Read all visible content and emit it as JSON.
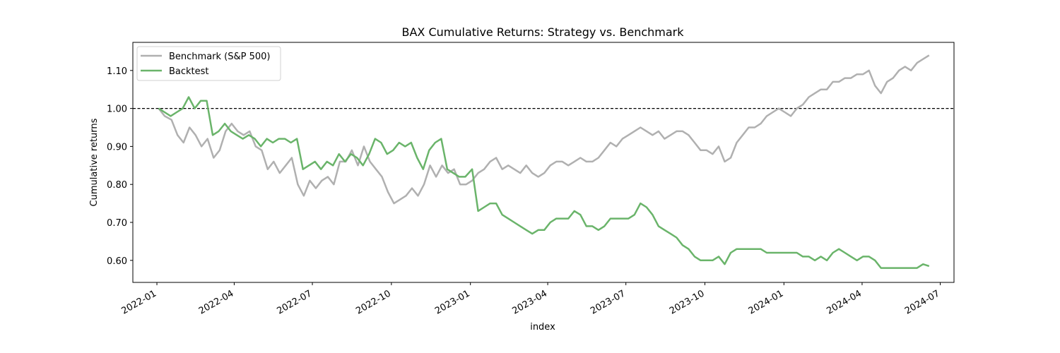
{
  "chart_data": {
    "type": "line",
    "title": "BAX Cumulative Returns: Strategy vs. Benchmark",
    "xlabel": "index",
    "ylabel": "Cumulative returns",
    "xlim": [
      "2021-12-04",
      "2024-07-17"
    ],
    "ylim": [
      0.542,
      1.174
    ],
    "x_ticks": [
      "2022-01",
      "2022-04",
      "2022-07",
      "2022-10",
      "2023-01",
      "2023-04",
      "2023-07",
      "2023-10",
      "2024-01",
      "2024-04",
      "2024-07"
    ],
    "y_ticks": [
      0.6,
      0.7,
      0.8,
      0.9,
      1.0,
      1.1
    ],
    "y_tick_labels": [
      "0.60",
      "0.70",
      "0.80",
      "0.90",
      "1.00",
      "1.10"
    ],
    "reference_line": {
      "y": 1.0,
      "style": "dashed",
      "color": "#000000"
    },
    "grid": false,
    "legend": {
      "placement": "top-left"
    },
    "series": [
      {
        "name": "Benchmark (S&P 500)",
        "color": "#b0b0b0",
        "points": [
          [
            "2022-01-03",
            1.0
          ],
          [
            "2022-01-10",
            0.98
          ],
          [
            "2022-01-18",
            0.97
          ],
          [
            "2022-01-25",
            0.93
          ],
          [
            "2022-02-01",
            0.91
          ],
          [
            "2022-02-08",
            0.95
          ],
          [
            "2022-02-15",
            0.93
          ],
          [
            "2022-02-22",
            0.9
          ],
          [
            "2022-03-01",
            0.92
          ],
          [
            "2022-03-08",
            0.87
          ],
          [
            "2022-03-15",
            0.89
          ],
          [
            "2022-03-22",
            0.94
          ],
          [
            "2022-03-29",
            0.96
          ],
          [
            "2022-04-05",
            0.94
          ],
          [
            "2022-04-12",
            0.93
          ],
          [
            "2022-04-19",
            0.94
          ],
          [
            "2022-04-26",
            0.9
          ],
          [
            "2022-05-03",
            0.89
          ],
          [
            "2022-05-10",
            0.84
          ],
          [
            "2022-05-17",
            0.86
          ],
          [
            "2022-05-24",
            0.83
          ],
          [
            "2022-05-31",
            0.85
          ],
          [
            "2022-06-07",
            0.87
          ],
          [
            "2022-06-14",
            0.8
          ],
          [
            "2022-06-21",
            0.77
          ],
          [
            "2022-06-28",
            0.81
          ],
          [
            "2022-07-05",
            0.79
          ],
          [
            "2022-07-12",
            0.81
          ],
          [
            "2022-07-19",
            0.82
          ],
          [
            "2022-07-26",
            0.8
          ],
          [
            "2022-08-02",
            0.86
          ],
          [
            "2022-08-09",
            0.86
          ],
          [
            "2022-08-16",
            0.89
          ],
          [
            "2022-08-23",
            0.85
          ],
          [
            "2022-08-30",
            0.9
          ],
          [
            "2022-09-06",
            0.86
          ],
          [
            "2022-09-13",
            0.84
          ],
          [
            "2022-09-20",
            0.82
          ],
          [
            "2022-09-27",
            0.78
          ],
          [
            "2022-10-04",
            0.75
          ],
          [
            "2022-10-11",
            0.76
          ],
          [
            "2022-10-18",
            0.77
          ],
          [
            "2022-10-25",
            0.79
          ],
          [
            "2022-11-01",
            0.77
          ],
          [
            "2022-11-08",
            0.8
          ],
          [
            "2022-11-15",
            0.85
          ],
          [
            "2022-11-22",
            0.82
          ],
          [
            "2022-11-29",
            0.85
          ],
          [
            "2022-12-06",
            0.83
          ],
          [
            "2022-12-13",
            0.84
          ],
          [
            "2022-12-20",
            0.8
          ],
          [
            "2022-12-27",
            0.8
          ],
          [
            "2023-01-03",
            0.81
          ],
          [
            "2023-01-10",
            0.83
          ],
          [
            "2023-01-17",
            0.84
          ],
          [
            "2023-01-24",
            0.86
          ],
          [
            "2023-01-31",
            0.87
          ],
          [
            "2023-02-07",
            0.84
          ],
          [
            "2023-02-14",
            0.85
          ],
          [
            "2023-02-21",
            0.84
          ],
          [
            "2023-02-28",
            0.83
          ],
          [
            "2023-03-07",
            0.85
          ],
          [
            "2023-03-14",
            0.83
          ],
          [
            "2023-03-21",
            0.82
          ],
          [
            "2023-03-28",
            0.83
          ],
          [
            "2023-04-04",
            0.85
          ],
          [
            "2023-04-11",
            0.86
          ],
          [
            "2023-04-18",
            0.86
          ],
          [
            "2023-04-25",
            0.85
          ],
          [
            "2023-05-02",
            0.86
          ],
          [
            "2023-05-09",
            0.87
          ],
          [
            "2023-05-16",
            0.86
          ],
          [
            "2023-05-23",
            0.86
          ],
          [
            "2023-05-30",
            0.87
          ],
          [
            "2023-06-06",
            0.89
          ],
          [
            "2023-06-13",
            0.91
          ],
          [
            "2023-06-20",
            0.9
          ],
          [
            "2023-06-27",
            0.92
          ],
          [
            "2023-07-04",
            0.93
          ],
          [
            "2023-07-11",
            0.94
          ],
          [
            "2023-07-18",
            0.95
          ],
          [
            "2023-07-25",
            0.94
          ],
          [
            "2023-08-01",
            0.93
          ],
          [
            "2023-08-08",
            0.94
          ],
          [
            "2023-08-15",
            0.92
          ],
          [
            "2023-08-22",
            0.93
          ],
          [
            "2023-08-29",
            0.94
          ],
          [
            "2023-09-05",
            0.94
          ],
          [
            "2023-09-12",
            0.93
          ],
          [
            "2023-09-19",
            0.91
          ],
          [
            "2023-09-26",
            0.89
          ],
          [
            "2023-10-03",
            0.89
          ],
          [
            "2023-10-10",
            0.88
          ],
          [
            "2023-10-17",
            0.9
          ],
          [
            "2023-10-24",
            0.86
          ],
          [
            "2023-10-31",
            0.87
          ],
          [
            "2023-11-07",
            0.91
          ],
          [
            "2023-11-14",
            0.93
          ],
          [
            "2023-11-21",
            0.95
          ],
          [
            "2023-11-28",
            0.95
          ],
          [
            "2023-12-05",
            0.96
          ],
          [
            "2023-12-12",
            0.98
          ],
          [
            "2023-12-19",
            0.99
          ],
          [
            "2023-12-26",
            1.0
          ],
          [
            "2024-01-02",
            0.99
          ],
          [
            "2024-01-09",
            0.98
          ],
          [
            "2024-01-16",
            1.0
          ],
          [
            "2024-01-23",
            1.01
          ],
          [
            "2024-01-30",
            1.03
          ],
          [
            "2024-02-06",
            1.04
          ],
          [
            "2024-02-13",
            1.05
          ],
          [
            "2024-02-20",
            1.05
          ],
          [
            "2024-02-27",
            1.07
          ],
          [
            "2024-03-05",
            1.07
          ],
          [
            "2024-03-12",
            1.08
          ],
          [
            "2024-03-19",
            1.08
          ],
          [
            "2024-03-26",
            1.09
          ],
          [
            "2024-04-02",
            1.09
          ],
          [
            "2024-04-09",
            1.1
          ],
          [
            "2024-04-16",
            1.06
          ],
          [
            "2024-04-23",
            1.04
          ],
          [
            "2024-04-30",
            1.07
          ],
          [
            "2024-05-07",
            1.08
          ],
          [
            "2024-05-14",
            1.1
          ],
          [
            "2024-05-21",
            1.11
          ],
          [
            "2024-05-28",
            1.1
          ],
          [
            "2024-06-04",
            1.12
          ],
          [
            "2024-06-11",
            1.13
          ],
          [
            "2024-06-18",
            1.14
          ]
        ]
      },
      {
        "name": "Backtest",
        "color": "#6ab46a",
        "points": [
          [
            "2022-01-03",
            1.0
          ],
          [
            "2022-01-10",
            0.99
          ],
          [
            "2022-01-17",
            0.98
          ],
          [
            "2022-01-24",
            0.99
          ],
          [
            "2022-01-31",
            1.0
          ],
          [
            "2022-02-07",
            1.03
          ],
          [
            "2022-02-14",
            1.0
          ],
          [
            "2022-02-21",
            1.02
          ],
          [
            "2022-02-28",
            1.02
          ],
          [
            "2022-03-07",
            0.93
          ],
          [
            "2022-03-14",
            0.94
          ],
          [
            "2022-03-21",
            0.96
          ],
          [
            "2022-03-28",
            0.94
          ],
          [
            "2022-04-04",
            0.93
          ],
          [
            "2022-04-11",
            0.92
          ],
          [
            "2022-04-18",
            0.93
          ],
          [
            "2022-04-25",
            0.92
          ],
          [
            "2022-05-02",
            0.9
          ],
          [
            "2022-05-09",
            0.92
          ],
          [
            "2022-05-16",
            0.91
          ],
          [
            "2022-05-23",
            0.92
          ],
          [
            "2022-05-30",
            0.92
          ],
          [
            "2022-06-06",
            0.91
          ],
          [
            "2022-06-13",
            0.92
          ],
          [
            "2022-06-20",
            0.84
          ],
          [
            "2022-06-27",
            0.85
          ],
          [
            "2022-07-04",
            0.86
          ],
          [
            "2022-07-11",
            0.84
          ],
          [
            "2022-07-18",
            0.86
          ],
          [
            "2022-07-25",
            0.85
          ],
          [
            "2022-08-01",
            0.88
          ],
          [
            "2022-08-08",
            0.86
          ],
          [
            "2022-08-15",
            0.88
          ],
          [
            "2022-08-22",
            0.87
          ],
          [
            "2022-08-29",
            0.85
          ],
          [
            "2022-09-05",
            0.88
          ],
          [
            "2022-09-12",
            0.92
          ],
          [
            "2022-09-19",
            0.91
          ],
          [
            "2022-09-26",
            0.88
          ],
          [
            "2022-10-03",
            0.89
          ],
          [
            "2022-10-10",
            0.91
          ],
          [
            "2022-10-17",
            0.9
          ],
          [
            "2022-10-24",
            0.91
          ],
          [
            "2022-10-31",
            0.87
          ],
          [
            "2022-11-07",
            0.84
          ],
          [
            "2022-11-14",
            0.89
          ],
          [
            "2022-11-21",
            0.91
          ],
          [
            "2022-11-28",
            0.92
          ],
          [
            "2022-12-05",
            0.84
          ],
          [
            "2022-12-12",
            0.83
          ],
          [
            "2022-12-19",
            0.82
          ],
          [
            "2022-12-26",
            0.82
          ],
          [
            "2023-01-03",
            0.84
          ],
          [
            "2023-01-10",
            0.73
          ],
          [
            "2023-01-17",
            0.74
          ],
          [
            "2023-01-24",
            0.75
          ],
          [
            "2023-01-31",
            0.75
          ],
          [
            "2023-02-07",
            0.72
          ],
          [
            "2023-02-14",
            0.71
          ],
          [
            "2023-02-21",
            0.7
          ],
          [
            "2023-02-28",
            0.69
          ],
          [
            "2023-03-07",
            0.68
          ],
          [
            "2023-03-14",
            0.67
          ],
          [
            "2023-03-21",
            0.68
          ],
          [
            "2023-03-28",
            0.68
          ],
          [
            "2023-04-04",
            0.7
          ],
          [
            "2023-04-11",
            0.71
          ],
          [
            "2023-04-18",
            0.71
          ],
          [
            "2023-04-25",
            0.71
          ],
          [
            "2023-05-02",
            0.73
          ],
          [
            "2023-05-09",
            0.72
          ],
          [
            "2023-05-16",
            0.69
          ],
          [
            "2023-05-23",
            0.69
          ],
          [
            "2023-05-30",
            0.68
          ],
          [
            "2023-06-06",
            0.69
          ],
          [
            "2023-06-13",
            0.71
          ],
          [
            "2023-06-20",
            0.71
          ],
          [
            "2023-06-27",
            0.71
          ],
          [
            "2023-07-04",
            0.71
          ],
          [
            "2023-07-11",
            0.72
          ],
          [
            "2023-07-18",
            0.75
          ],
          [
            "2023-07-25",
            0.74
          ],
          [
            "2023-08-01",
            0.72
          ],
          [
            "2023-08-08",
            0.69
          ],
          [
            "2023-08-15",
            0.68
          ],
          [
            "2023-08-22",
            0.67
          ],
          [
            "2023-08-29",
            0.66
          ],
          [
            "2023-09-05",
            0.64
          ],
          [
            "2023-09-12",
            0.63
          ],
          [
            "2023-09-19",
            0.61
          ],
          [
            "2023-09-26",
            0.6
          ],
          [
            "2023-10-03",
            0.6
          ],
          [
            "2023-10-10",
            0.6
          ],
          [
            "2023-10-17",
            0.61
          ],
          [
            "2023-10-24",
            0.59
          ],
          [
            "2023-10-31",
            0.62
          ],
          [
            "2023-11-07",
            0.63
          ],
          [
            "2023-11-14",
            0.63
          ],
          [
            "2023-11-21",
            0.63
          ],
          [
            "2023-11-28",
            0.63
          ],
          [
            "2023-12-05",
            0.63
          ],
          [
            "2023-12-12",
            0.62
          ],
          [
            "2023-12-19",
            0.62
          ],
          [
            "2023-12-26",
            0.62
          ],
          [
            "2024-01-02",
            0.62
          ],
          [
            "2024-01-09",
            0.62
          ],
          [
            "2024-01-16",
            0.62
          ],
          [
            "2024-01-23",
            0.61
          ],
          [
            "2024-01-30",
            0.61
          ],
          [
            "2024-02-06",
            0.6
          ],
          [
            "2024-02-13",
            0.61
          ],
          [
            "2024-02-20",
            0.6
          ],
          [
            "2024-02-27",
            0.62
          ],
          [
            "2024-03-05",
            0.63
          ],
          [
            "2024-03-12",
            0.62
          ],
          [
            "2024-03-19",
            0.61
          ],
          [
            "2024-03-26",
            0.6
          ],
          [
            "2024-04-02",
            0.61
          ],
          [
            "2024-04-09",
            0.61
          ],
          [
            "2024-04-16",
            0.6
          ],
          [
            "2024-04-23",
            0.58
          ],
          [
            "2024-04-30",
            0.58
          ],
          [
            "2024-05-07",
            0.58
          ],
          [
            "2024-05-14",
            0.58
          ],
          [
            "2024-05-21",
            0.58
          ],
          [
            "2024-05-28",
            0.58
          ],
          [
            "2024-06-04",
            0.58
          ],
          [
            "2024-06-11",
            0.59
          ],
          [
            "2024-06-18",
            0.585
          ]
        ]
      }
    ]
  }
}
